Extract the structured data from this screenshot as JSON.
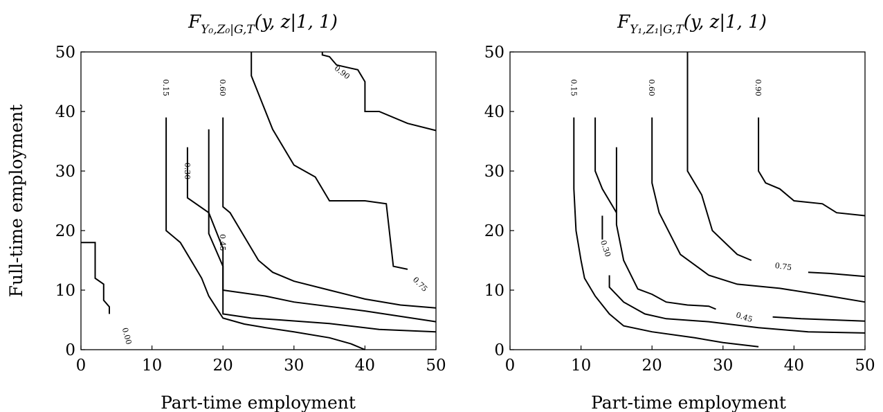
{
  "chart_data": [
    {
      "type": "line",
      "subtype": "contour",
      "title": "F_{Y_0,Z_0|G,T}(y, z|1, 1)",
      "xlabel": "Part-time employment",
      "ylabel": "Full-time employment",
      "xlim": [
        0,
        50
      ],
      "ylim": [
        0,
        50
      ],
      "xticks": [
        "0",
        "10",
        "20",
        "30",
        "40",
        "50"
      ],
      "yticks": [
        "0",
        "10",
        "20",
        "30",
        "40",
        "50"
      ],
      "grid": false,
      "series": [
        {
          "name": "0.00",
          "x": [
            0,
            2,
            2,
            3.2,
            3.2,
            4,
            4
          ],
          "y": [
            18,
            18,
            12,
            11,
            8.3,
            7.2,
            6
          ],
          "label": {
            "text": "0.00",
            "x": 6.5,
            "y": 2.3,
            "angle": 75
          }
        },
        {
          "name": "0.15",
          "x": [
            12,
            12,
            14,
            16,
            17,
            18,
            20,
            23,
            26,
            30,
            35,
            38,
            40
          ],
          "y": [
            39,
            20,
            18,
            14,
            12,
            9,
            5.3,
            4.3,
            3.7,
            3,
            2,
            1,
            0
          ],
          "label": {
            "text": "0.15",
            "x": 12,
            "y": 44,
            "angle": 90
          }
        },
        {
          "name": "0.30",
          "x": [
            15,
            15,
            18,
            20,
            20,
            24,
            28,
            35,
            42,
            50
          ],
          "y": [
            34,
            25.5,
            23,
            17,
            6,
            5.3,
            5,
            4.4,
            3.4,
            3
          ],
          "label": {
            "text": "0.30",
            "x": 15,
            "y": 30,
            "angle": 90
          }
        },
        {
          "name": "0.45",
          "x": [
            18,
            18,
            20,
            20,
            26,
            30,
            40,
            50
          ],
          "y": [
            37,
            19.5,
            14,
            10,
            9,
            8,
            6.5,
            4.7
          ],
          "label": {
            "text": "0.45",
            "x": 20,
            "y": 18,
            "angle": 90
          }
        },
        {
          "name": "0.60",
          "x": [
            20,
            20,
            21,
            23,
            25,
            27,
            30,
            35,
            40,
            45,
            50
          ],
          "y": [
            39,
            24,
            23,
            19,
            15,
            13,
            11.5,
            10,
            8.5,
            7.5,
            7
          ],
          "label": {
            "text": "0.60",
            "x": 20,
            "y": 44,
            "angle": 90
          }
        },
        {
          "name": "0.75",
          "x": [
            24,
            24,
            27,
            30,
            33,
            35,
            40,
            43,
            44,
            46
          ],
          "y": [
            50,
            46,
            37,
            31,
            29,
            25,
            25,
            24.5,
            14,
            13.5
          ],
          "label": {
            "text": "0.75",
            "x": 47.8,
            "y": 11,
            "angle": 45
          }
        },
        {
          "name": "0.90",
          "x": [
            34,
            34,
            35,
            36,
            39,
            40,
            40,
            42,
            46,
            50
          ],
          "y": [
            50,
            49.5,
            49.2,
            47.8,
            47,
            45,
            40,
            40,
            38,
            36.8
          ],
          "label": {
            "text": "0.90",
            "x": 36.8,
            "y": 46.6,
            "angle": 38
          }
        }
      ]
    },
    {
      "type": "line",
      "subtype": "contour",
      "title": "F_{Y_1,Z_1|G,T}(y, z|1, 1)",
      "xlabel": "Part-time employment",
      "ylabel": "",
      "xlim": [
        0,
        50
      ],
      "ylim": [
        0,
        50
      ],
      "xticks": [
        "0",
        "10",
        "20",
        "30",
        "40",
        "50"
      ],
      "yticks": [
        "0",
        "10",
        "20",
        "30",
        "40",
        "50"
      ],
      "grid": false,
      "series": [
        {
          "name": "0.15",
          "x": [
            9,
            9,
            9.3,
            10,
            10.5,
            12,
            14,
            16,
            20,
            26,
            30,
            35
          ],
          "y": [
            39,
            27,
            20,
            15,
            12,
            9,
            6,
            4,
            3,
            2,
            1.2,
            0.5
          ],
          "label": {
            "text": "0.15",
            "x": 9,
            "y": 44,
            "angle": 90
          }
        },
        {
          "name": "0.30",
          "x": [
            13,
            13
          ],
          "y": [
            22.5,
            18.5
          ],
          "label": {
            "text": "0.30",
            "x": 13.5,
            "y": 17,
            "angle": 72
          }
        },
        {
          "name": "0.30",
          "x": [
            14,
            14,
            16,
            19,
            22,
            28,
            35,
            42,
            50
          ],
          "y": [
            12.5,
            10.5,
            8,
            6,
            5.2,
            4.7,
            3.7,
            3,
            2.8
          ]
        },
        {
          "name": "0.45",
          "x": [
            12,
            12,
            13,
            15
          ],
          "y": [
            39,
            30,
            27,
            23
          ]
        },
        {
          "name": "0.45",
          "x": [
            15,
            15,
            16,
            18,
            20,
            22,
            25,
            28,
            29
          ],
          "y": [
            34,
            21,
            15,
            10.2,
            9.3,
            8,
            7.5,
            7.3,
            6.8
          ],
          "label": {
            "text": "0.45",
            "x": 33,
            "y": 5.5,
            "angle": 18
          }
        },
        {
          "name": "0.45",
          "x": [
            37,
            41,
            50
          ],
          "y": [
            5.5,
            5.2,
            4.8
          ]
        },
        {
          "name": "0.60",
          "x": [
            20,
            20,
            21,
            24,
            28,
            32,
            38,
            45,
            50
          ],
          "y": [
            39,
            28,
            23,
            16,
            12.5,
            11,
            10.3,
            9,
            8
          ]
        },
        {
          "name": "0.75",
          "x": [
            25,
            25,
            27,
            28.5,
            32,
            34
          ],
          "y": [
            50,
            30,
            26,
            20,
            16,
            15
          ]
        },
        {
          "name": "0.75",
          "x": [
            42,
            45,
            50
          ],
          "y": [
            13,
            12.8,
            12.3
          ],
          "label": {
            "text": "0.75",
            "x": 38.5,
            "y": 14,
            "angle": 8
          }
        },
        {
          "name": "0.90",
          "x": [
            35,
            35,
            36,
            38,
            40,
            44,
            46,
            50
          ],
          "y": [
            39,
            30,
            28,
            27,
            25,
            24.5,
            23,
            22.5
          ],
          "label": {
            "text": "0.90",
            "x": 35,
            "y": 44,
            "angle": 90
          }
        },
        {
          "name": "0.60",
          "x": [
            20
          ],
          "y": [
            44
          ],
          "label": {
            "text": "0.60",
            "x": 20,
            "y": 44,
            "angle": 90
          }
        }
      ]
    }
  ],
  "panels": [
    {
      "title_main": "F",
      "title_sub": "Y₀,Z₀|G,T",
      "title_args": "(y, z|1, 1)",
      "xlabel": "Part-time employment",
      "ylabel": "Full-time employment"
    },
    {
      "title_main": "F",
      "title_sub": "Y₁,Z₁|G,T",
      "title_args": "(y, z|1, 1)",
      "xlabel": "Part-time employment",
      "ylabel": ""
    }
  ]
}
